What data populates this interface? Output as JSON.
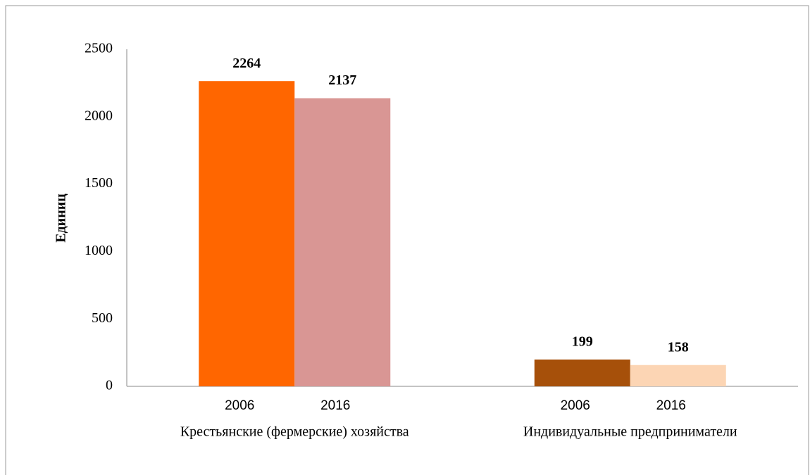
{
  "chart_data": {
    "type": "bar",
    "y_label": "Единиц",
    "categories": [
      "Крестьянские (фермерские) хозяйства",
      "Индивидуальные предприниматели"
    ],
    "series": [
      {
        "name": "2006",
        "colors": [
          "#ff6600",
          "#a6500a"
        ],
        "values": [
          2264,
          199
        ]
      },
      {
        "name": "2016",
        "colors": [
          "#d99694",
          "#fcd5b4"
        ],
        "values": [
          2137,
          158
        ]
      }
    ],
    "ylim": [
      0,
      2500
    ],
    "yticks": [
      0,
      500,
      1000,
      1500,
      2000,
      2500
    ],
    "grid": false
  }
}
